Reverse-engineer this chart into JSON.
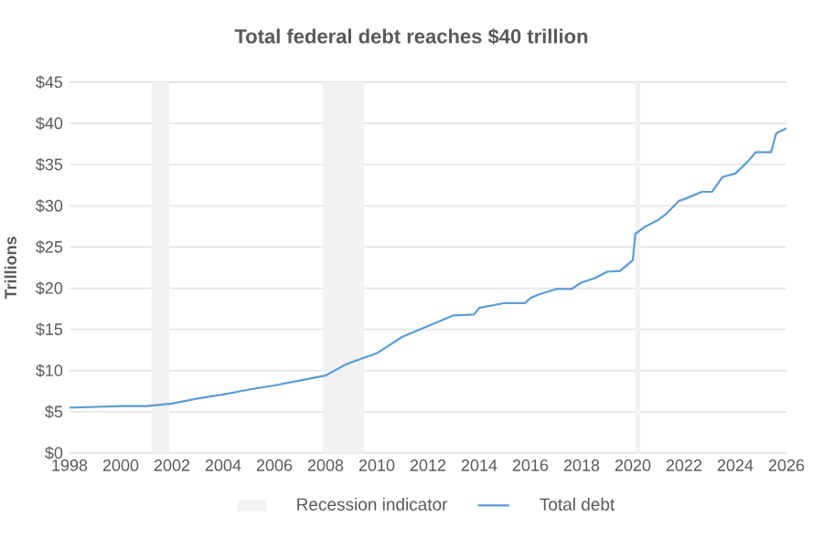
{
  "chart_data": {
    "type": "line",
    "title": "Total federal debt reaches $40 trillion",
    "ylabel": "Trillions",
    "xlim": [
      1998,
      2026
    ],
    "xticks": [
      1998,
      2000,
      2002,
      2004,
      2006,
      2008,
      2010,
      2012,
      2014,
      2016,
      2018,
      2020,
      2022,
      2024,
      2026
    ],
    "ylim": [
      0,
      45
    ],
    "yticks": [
      {
        "value": 0,
        "label": "$0"
      },
      {
        "value": 5,
        "label": "$5"
      },
      {
        "value": 10,
        "label": "$10"
      },
      {
        "value": 15,
        "label": "$15"
      },
      {
        "value": 20,
        "label": "$20"
      },
      {
        "value": 25,
        "label": "$25"
      },
      {
        "value": 30,
        "label": "$30"
      },
      {
        "value": 35,
        "label": "$35"
      },
      {
        "value": 40,
        "label": "$40"
      },
      {
        "value": 45,
        "label": "$45"
      }
    ],
    "grid": "y",
    "legend": "bottom",
    "marker": "none",
    "line_style": "solid",
    "bands": [
      {
        "axis": "x",
        "from": 2001.2,
        "to": 2001.9,
        "label": "Recession indicator",
        "color": "#f2f2f2"
      },
      {
        "axis": "x",
        "from": 2007.9,
        "to": 2009.5,
        "color": "#f2f2f2"
      },
      {
        "axis": "x",
        "from": 2020.1,
        "to": 2020.3,
        "color": "#f2f2f2"
      }
    ],
    "series": [
      {
        "name": "Total debt",
        "color": "#5b9bd5",
        "x": [
          1998,
          1999,
          2000,
          2001,
          2002,
          2003,
          2004,
          2005,
          2006,
          2007,
          2008,
          2008.7,
          2009,
          2010,
          2011,
          2012,
          2013,
          2013.8,
          2014,
          2015,
          2015.8,
          2016,
          2016.3,
          2017,
          2017.6,
          2018,
          2018.5,
          2019,
          2019.5,
          2020,
          2020.1,
          2020.5,
          2021,
          2021.3,
          2021.8,
          2022,
          2022.7,
          2023.1,
          2023.5,
          2024,
          2024.5,
          2024.8,
          2025.4,
          2025.6,
          2026
        ],
        "values": [
          5.5,
          5.6,
          5.7,
          5.7,
          6.0,
          6.6,
          7.1,
          7.7,
          8.2,
          8.8,
          9.4,
          10.6,
          11.0,
          12.1,
          14.1,
          15.4,
          16.7,
          16.8,
          17.6,
          18.2,
          18.2,
          18.8,
          19.2,
          19.9,
          19.9,
          20.7,
          21.2,
          22.0,
          22.1,
          23.4,
          26.6,
          27.5,
          28.3,
          29.0,
          30.6,
          30.8,
          31.7,
          31.7,
          33.5,
          33.9,
          35.4,
          36.5,
          36.5,
          38.8,
          39.4
        ]
      }
    ]
  }
}
